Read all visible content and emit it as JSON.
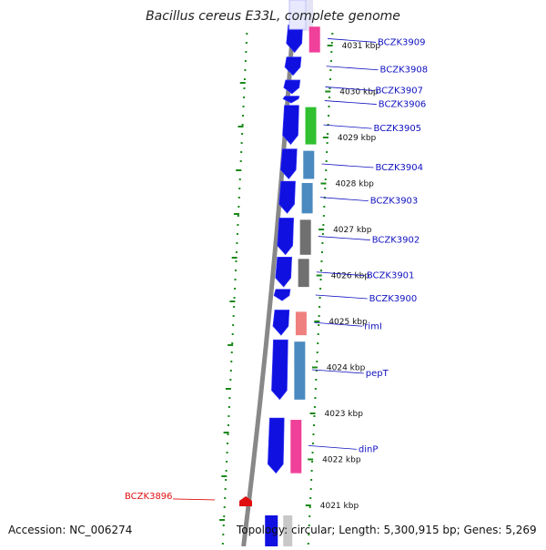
{
  "title": "Bacillus cereus E33L, complete genome",
  "footer": {
    "accession": "Accession: NC_006274",
    "topology": "Topology: circular; Length: 5,300,915 bp; Genes: 5,269"
  },
  "colors": {
    "gene_arrow": "#1010e0",
    "backbone": "#888888",
    "ruler_dots": "#1a8a1a",
    "gene_label": "#1010c0",
    "highlight_label": "#e01010",
    "cog_magenta": "#e0308a",
    "cog_green": "#30c030",
    "cog_steelblue": "#4a8ac0",
    "cog_gray": "#707070",
    "cog_salmon": "#f08080",
    "cog_pink": "#f0409a",
    "cog_light": "#c8c8c8"
  },
  "chart_data": {
    "type": "genome-map",
    "units": "kbp",
    "axis_range": [
      4020.6,
      4031.5
    ],
    "ticks": [
      {
        "position": 4031,
        "label": "4031 kbp"
      },
      {
        "position": 4030,
        "label": "4030 kbp"
      },
      {
        "position": 4029,
        "label": "4029 kbp"
      },
      {
        "position": 4028,
        "label": "4028 kbp"
      },
      {
        "position": 4027,
        "label": "4027 kbp"
      },
      {
        "position": 4026,
        "label": "4026 kbp"
      },
      {
        "position": 4025,
        "label": "4025 kbp"
      },
      {
        "position": 4024,
        "label": "4024 kbp"
      },
      {
        "position": 4023,
        "label": "4023 kbp"
      },
      {
        "position": 4022,
        "label": "4022 kbp"
      },
      {
        "position": 4021,
        "label": "4021 kbp"
      }
    ],
    "genes": [
      {
        "name": "BCZK3909",
        "start": 4030.85,
        "end": 4031.45,
        "cog_color": "cog_pink"
      },
      {
        "name": "BCZK3908",
        "start": 4030.35,
        "end": 4030.75,
        "cog_color": ""
      },
      {
        "name": "BCZK3907",
        "start": 4029.95,
        "end": 4030.25,
        "cog_color": ""
      },
      {
        "name": "BCZK3906",
        "start": 4029.75,
        "end": 4029.9,
        "cog_color": ""
      },
      {
        "name": "BCZK3905",
        "start": 4028.85,
        "end": 4029.7,
        "cog_color": "cog_green"
      },
      {
        "name": "BCZK3904",
        "start": 4028.1,
        "end": 4028.75,
        "cog_color": "cog_steelblue"
      },
      {
        "name": "BCZK3903",
        "start": 4027.35,
        "end": 4028.05,
        "cog_color": "cog_steelblue"
      },
      {
        "name": "BCZK3902",
        "start": 4026.45,
        "end": 4027.25,
        "cog_color": "cog_gray"
      },
      {
        "name": "BCZK3901",
        "start": 4025.75,
        "end": 4026.4,
        "cog_color": "cog_gray"
      },
      {
        "name": "BCZK3900",
        "start": 4025.45,
        "end": 4025.7,
        "cog_color": ""
      },
      {
        "name": "rimI",
        "start": 4024.7,
        "end": 4025.25,
        "cog_color": "cog_salmon"
      },
      {
        "name": "pepT",
        "start": 4023.3,
        "end": 4024.6,
        "cog_color": "cog_steelblue"
      },
      {
        "name": "dinP",
        "start": 4021.7,
        "end": 4022.9,
        "cog_color": "cog_pink"
      }
    ],
    "highlight": {
      "name": "BCZK3896",
      "position": 4021.1
    }
  }
}
